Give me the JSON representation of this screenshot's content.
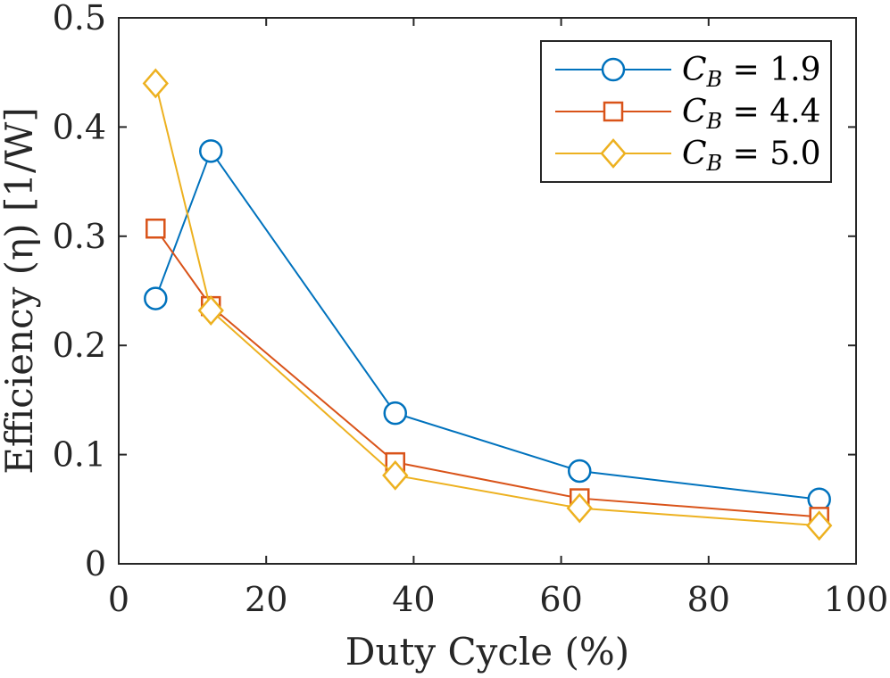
{
  "chart_data": {
    "type": "line",
    "title": "",
    "xlabel": "Duty Cycle (%)",
    "ylabel": "Efficiency (η) [1/W]",
    "xlim": [
      0,
      100
    ],
    "ylim": [
      0,
      0.5
    ],
    "xticks": [
      0,
      20,
      40,
      60,
      80,
      100
    ],
    "yticks": [
      0,
      0.1,
      0.2,
      0.3,
      0.4,
      0.5
    ],
    "xtick_labels": [
      "0",
      "20",
      "40",
      "60",
      "80",
      "100"
    ],
    "ytick_labels": [
      "0",
      "0.1",
      "0.2",
      "0.3",
      "0.4",
      "0.5"
    ],
    "grid": false,
    "legend_position": "top-right",
    "x": [
      5,
      12.5,
      37.5,
      62.5,
      95
    ],
    "series": [
      {
        "name": "C_B = 1.9",
        "label_main": "C",
        "label_sub": "B",
        "label_rest": " = 1.9",
        "color": "#0072BD",
        "marker": "circle",
        "values": [
          0.243,
          0.378,
          0.138,
          0.085,
          0.059
        ]
      },
      {
        "name": "C_B = 4.4",
        "label_main": "C",
        "label_sub": "B",
        "label_rest": " = 4.4",
        "color": "#D95319",
        "marker": "square",
        "values": [
          0.307,
          0.236,
          0.093,
          0.06,
          0.043
        ]
      },
      {
        "name": "C_B = 5.0",
        "label_main": "C",
        "label_sub": "B",
        "label_rest": " = 5.0",
        "color": "#EDB120",
        "marker": "diamond",
        "values": [
          0.44,
          0.232,
          0.081,
          0.051,
          0.035
        ]
      }
    ]
  }
}
